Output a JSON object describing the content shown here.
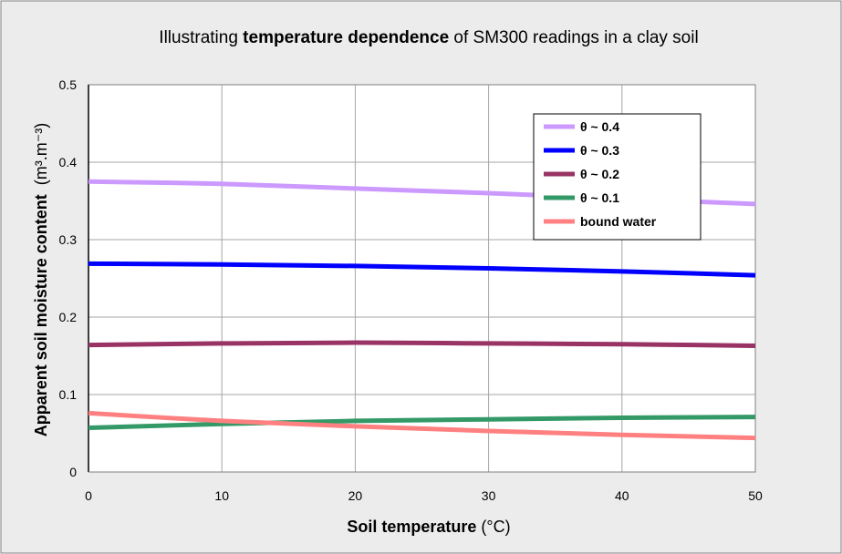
{
  "chart_data": {
    "type": "line",
    "title": {
      "prefix": "Illustrating ",
      "emphasis": "temperature dependence",
      "suffix": " of SM300 readings in a clay soil"
    },
    "xlabel": {
      "bold": "Soil temperature",
      "rest": " (°C)"
    },
    "ylabel": {
      "bold": "Apparent soil moisture content",
      "unit": "(m³.m⁻³)"
    },
    "xlim": [
      0,
      50
    ],
    "ylim": [
      0,
      0.5
    ],
    "xticks": [
      0,
      10,
      20,
      30,
      40,
      50
    ],
    "yticks": [
      0,
      0.1,
      0.2,
      0.3,
      0.4,
      0.5
    ],
    "ytick_labels": [
      "0",
      "0.1",
      "0.2",
      "0.3",
      "0.4",
      "0.5"
    ],
    "grid": true,
    "legend_position": "top-right",
    "x": [
      0,
      10,
      20,
      30,
      40,
      50
    ],
    "series": [
      {
        "name": "θ ~ 0.4",
        "color": "#cc99ff",
        "values": [
          0.375,
          0.372,
          0.366,
          0.36,
          0.353,
          0.346
        ]
      },
      {
        "name": "θ ~ 0.3",
        "color": "#0000ff",
        "values": [
          0.269,
          0.268,
          0.266,
          0.263,
          0.259,
          0.254
        ]
      },
      {
        "name": "θ ~ 0.2",
        "color": "#993366",
        "values": [
          0.164,
          0.166,
          0.167,
          0.166,
          0.165,
          0.163
        ]
      },
      {
        "name": "θ ~ 0.1",
        "color": "#339966",
        "values": [
          0.057,
          0.062,
          0.066,
          0.068,
          0.07,
          0.071
        ]
      },
      {
        "name": "bound water",
        "color": "#ff8080",
        "values": [
          0.076,
          0.066,
          0.059,
          0.053,
          0.048,
          0.044
        ]
      }
    ]
  }
}
